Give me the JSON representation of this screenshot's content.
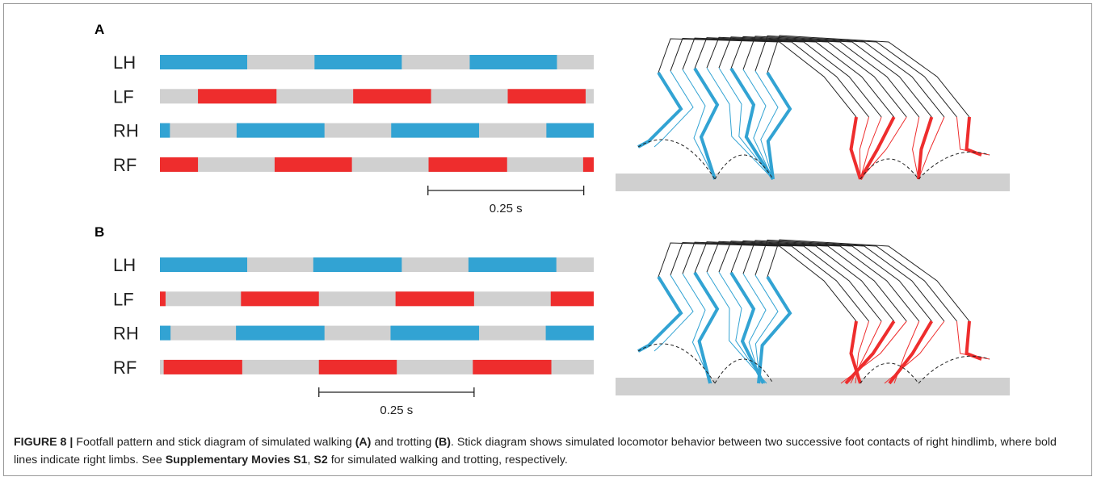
{
  "panels": [
    {
      "label": "A",
      "xlim": [
        0,
        0.696
      ],
      "swing_color": "#d0d0d0",
      "rows": [
        {
          "limb": "LH",
          "color": "#32a3d3",
          "stance": [
            [
              0,
              0.14
            ],
            [
              0.248,
              0.388
            ],
            [
              0.497,
              0.637
            ]
          ]
        },
        {
          "limb": "LF",
          "color": "#ee2d2d",
          "stance": [
            [
              0.061,
              0.187
            ],
            [
              0.31,
              0.435
            ],
            [
              0.558,
              0.683
            ]
          ]
        },
        {
          "limb": "RH",
          "color": "#32a3d3",
          "stance": [
            [
              0,
              0.016
            ],
            [
              0.123,
              0.264
            ],
            [
              0.371,
              0.512
            ],
            [
              0.62,
              0.696
            ]
          ]
        },
        {
          "limb": "RF",
          "color": "#ee2d2d",
          "stance": [
            [
              0,
              0.061
            ],
            [
              0.184,
              0.308
            ],
            [
              0.431,
              0.557
            ],
            [
              0.679,
              0.696
            ]
          ]
        }
      ],
      "scale_bar": {
        "start": 0.43,
        "end": 0.68,
        "label": "0.25 s"
      }
    },
    {
      "label": "B",
      "xlim": [
        0,
        0.696
      ],
      "swing_color": "#d0d0d0",
      "rows": [
        {
          "limb": "LH",
          "color": "#32a3d3",
          "stance": [
            [
              0,
              0.14
            ],
            [
              0.246,
              0.388
            ],
            [
              0.495,
              0.636
            ]
          ]
        },
        {
          "limb": "LF",
          "color": "#ee2d2d",
          "stance": [
            [
              0,
              0.009
            ],
            [
              0.13,
              0.255
            ],
            [
              0.378,
              0.504
            ],
            [
              0.627,
              0.696
            ]
          ]
        },
        {
          "limb": "RH",
          "color": "#32a3d3",
          "stance": [
            [
              0,
              0.017
            ],
            [
              0.122,
              0.264
            ],
            [
              0.37,
              0.512
            ],
            [
              0.619,
              0.696
            ]
          ]
        },
        {
          "limb": "RF",
          "color": "#ee2d2d",
          "stance": [
            [
              0.006,
              0.132
            ],
            [
              0.255,
              0.38
            ],
            [
              0.502,
              0.628
            ]
          ]
        }
      ],
      "scale_bar": {
        "start": 0.255,
        "end": 0.504,
        "label": "0.25 s"
      }
    }
  ],
  "caption": [
    {
      "text": "FIGURE 8 |",
      "bold": true
    },
    {
      "text": " Footfall pattern and stick diagram of simulated walking ",
      "bold": false
    },
    {
      "text": "(A)",
      "bold": true
    },
    {
      "text": " and trotting ",
      "bold": false
    },
    {
      "text": "(B)",
      "bold": true
    },
    {
      "text": ". Stick diagram shows simulated locomotor behavior between two successive foot contacts of right hindlimb, where bold lines indicate right limbs. See ",
      "bold": false
    },
    {
      "text": "Supplementary Movies S1",
      "bold": true
    },
    {
      "text": ", ",
      "bold": false
    },
    {
      "text": "S2",
      "bold": true
    },
    {
      "text": " for simulated walking and trotting, respectively.",
      "bold": false
    }
  ]
}
